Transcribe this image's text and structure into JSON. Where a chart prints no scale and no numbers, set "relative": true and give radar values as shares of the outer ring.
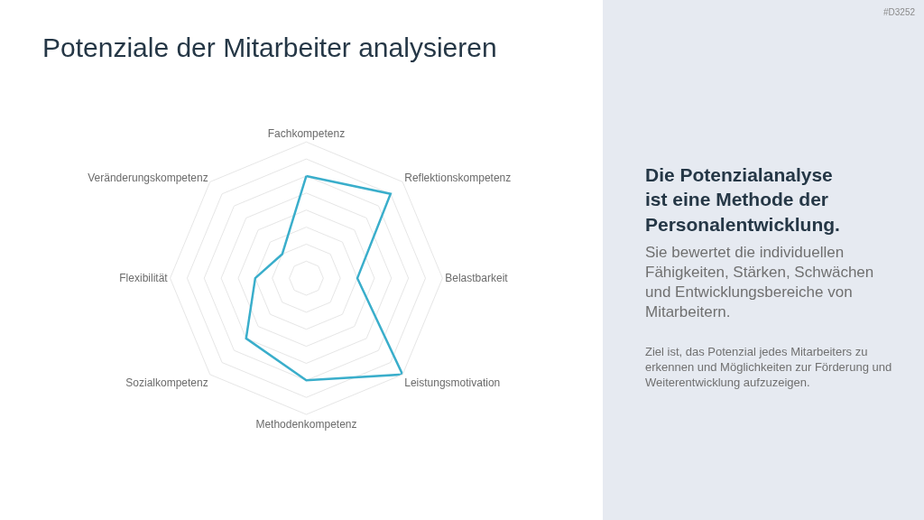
{
  "chart_data": [
    {
      "type": "radar",
      "title": "Potenziale der Mitarbeiter analysieren",
      "relative": true,
      "grid": true,
      "categories": [
        "Fachkompetenz",
        "Reflektionskompetenz",
        "Belastbarkeit",
        "Leistungsmotivation",
        "Methodenkompetenz",
        "Sozialkompetenz",
        "Flexibilität",
        "Veränderungskompetenz"
      ],
      "series": [
        {
          "color": "#3aaecb",
          "values": [
            0.75,
            0.875,
            0.375,
            1.0,
            0.75,
            0.625,
            0.375,
            0.25
          ]
        }
      ]
    },
    {
      "type": "other",
      "title": "Die Potenzialanalyse ist eine Methode der Personalentwicklung.",
      "subtitle": "Sie bewertet die individuellen Fähigkeiten, Stärken, Schwächen und Entwicklungsbereiche von Mitarbeitern.",
      "annotations": [
        "Ziel ist, das Potenzial jedes Mitarbeiters zu erkennen und Möglichkeiten zur Förderung und Weiterentwicklung aufzuzeigen.",
        "#D3252"
      ]
    }
  ]
}
